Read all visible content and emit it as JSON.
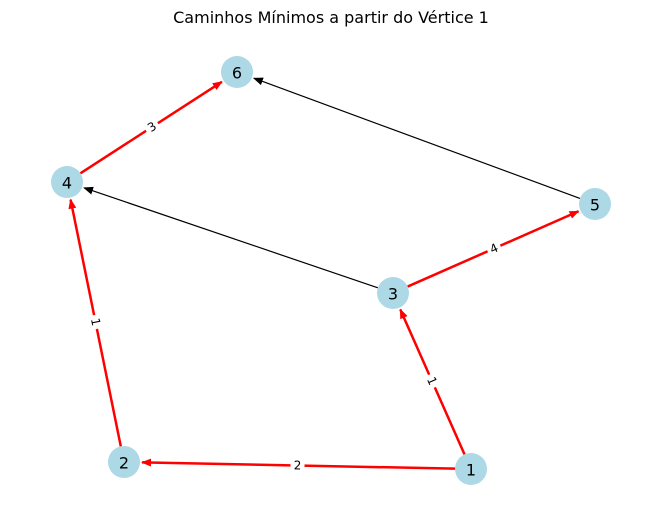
{
  "title": "Caminhos Mínimos a partir do Vértice 1",
  "colors": {
    "node_fill": "#add8e6",
    "shortest_path_edge": "#ff0000",
    "other_edge": "#000000",
    "background": "#ffffff"
  },
  "nodes": [
    {
      "id": "1",
      "label": "1"
    },
    {
      "id": "2",
      "label": "2"
    },
    {
      "id": "3",
      "label": "3"
    },
    {
      "id": "4",
      "label": "4"
    },
    {
      "id": "5",
      "label": "5"
    },
    {
      "id": "6",
      "label": "6"
    }
  ],
  "edges": [
    {
      "from": "1",
      "to": "2",
      "weight": "2",
      "shortest_path": true,
      "show_weight": true
    },
    {
      "from": "1",
      "to": "3",
      "weight": "1",
      "shortest_path": true,
      "show_weight": true
    },
    {
      "from": "2",
      "to": "4",
      "weight": "1",
      "shortest_path": true,
      "show_weight": true
    },
    {
      "from": "3",
      "to": "5",
      "weight": "4",
      "shortest_path": true,
      "show_weight": true
    },
    {
      "from": "4",
      "to": "6",
      "weight": "3",
      "shortest_path": true,
      "show_weight": true
    },
    {
      "from": "3",
      "to": "4",
      "weight": "",
      "shortest_path": false,
      "show_weight": false
    },
    {
      "from": "5",
      "to": "6",
      "weight": "",
      "shortest_path": false,
      "show_weight": false
    }
  ]
}
